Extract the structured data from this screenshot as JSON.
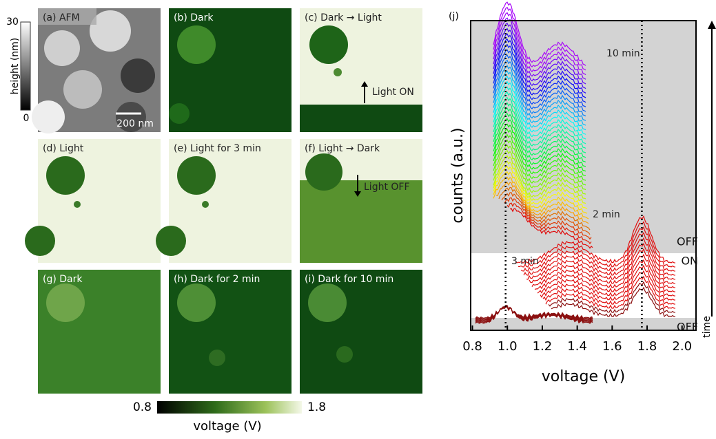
{
  "panels": [
    {
      "label": "(a) AFM"
    },
    {
      "label": "(b) Dark"
    },
    {
      "label": "(c) Dark → Light"
    },
    {
      "label": "(d) Light"
    },
    {
      "label": "(e) Light for 3 min"
    },
    {
      "label": "(f) Light → Dark"
    },
    {
      "label": "(g) Dark"
    },
    {
      "label": "(h) Dark for 2 min"
    },
    {
      "label": "(i) Dark for 10 min"
    }
  ],
  "afm": {
    "scale_label": "height (nm)",
    "scale_max": "30",
    "scale_min": "0",
    "scalebar": "200 nm"
  },
  "switch_labels": {
    "light_on": "Light ON",
    "light_off": "Light OFF"
  },
  "colorbar": {
    "min": "0.8",
    "max": "1.8",
    "label": "voltage (V)"
  },
  "chart_data": {
    "type": "waterfall",
    "panel_label": "(j)",
    "x_label": "voltage (V)",
    "y_label": "counts (a.u.)",
    "xlim": [
      0.79,
      2.08
    ],
    "xticks": [
      0.8,
      {
        "value": 1.0,
        "label": "1.0"
      },
      1.2,
      1.4,
      1.6,
      1.8,
      {
        "value": 2.0,
        "label": "2.0"
      }
    ],
    "reference_lines": [
      0.99,
      1.77
    ],
    "annotations": [
      "10 min",
      "2 min",
      "3 min",
      "OFF",
      "ON",
      "OFF"
    ],
    "time_label": "time"
  }
}
